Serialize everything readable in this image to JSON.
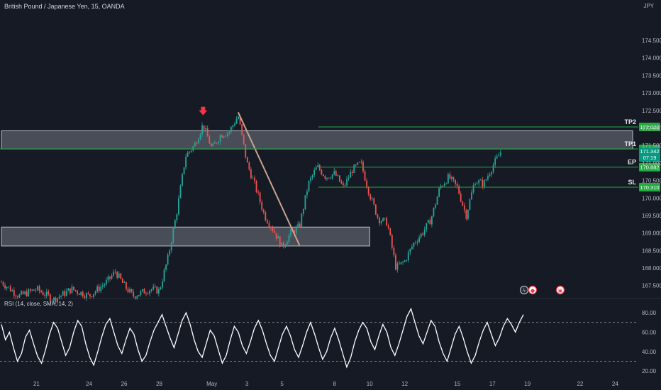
{
  "header": {
    "symbol_title": "British Pound / Japanese Yen, 15, OANDA",
    "currency": "JPY"
  },
  "rsi_panel": {
    "title": "RSI (14, close, SMA, 14, 2)"
  },
  "colors": {
    "background": "#161a25",
    "bull": "#26a69a",
    "bear": "#ef5350",
    "level_line": "#22ab3f",
    "zone_fill": "#cfd3de",
    "trendline": "#c9a391",
    "arrow": "#f23645",
    "rsi_line": "#ffffff",
    "rsi_band": "#787b86",
    "badge_green": "#22ab3f",
    "badge_current": "#089981"
  },
  "chart_data": [
    {
      "type": "candlestick",
      "title": "British Pound / Japanese Yen, 15, OANDA",
      "ylim": [
        167.15,
        175.25
      ],
      "y_ticks": [
        "174.500",
        "174.000",
        "173.500",
        "173.000",
        "172.500",
        "172.000",
        "171.500",
        "171.000",
        "170.500",
        "170.000",
        "169.500",
        "169.000",
        "168.500",
        "168.000",
        "167.500"
      ],
      "x_ticks": [
        "21",
        "24",
        "26",
        "28",
        "May",
        "3",
        "5",
        "8",
        "10",
        "12",
        "15",
        "17",
        "19",
        "22",
        "24"
      ],
      "x_tick_dates": [
        "2024-04-21",
        "2024-04-24",
        "2024-04-26",
        "2024-04-28",
        "2024-05-01",
        "2024-05-03",
        "2024-05-05",
        "2024-05-08",
        "2024-05-10",
        "2024-05-12",
        "2024-05-15",
        "2024-05-17",
        "2024-05-19",
        "2024-05-22",
        "2024-05-24"
      ],
      "price_path": [
        [
          "2024-04-19",
          167.6
        ],
        [
          "2024-04-20",
          167.2
        ],
        [
          "2024-04-21",
          167.4
        ],
        [
          "2024-04-22",
          167.1
        ],
        [
          "2024-04-23",
          167.4
        ],
        [
          "2024-04-24",
          167.2
        ],
        [
          "2024-04-25",
          167.6
        ],
        [
          "2024-04-25.5",
          167.9
        ],
        [
          "2024-04-26",
          167.5
        ],
        [
          "2024-04-26.5",
          167.2
        ],
        [
          "2024-04-27",
          167.3
        ],
        [
          "2024-04-27.5",
          167.4
        ],
        [
          "2024-04-28",
          167.35
        ],
        [
          "2024-04-28.5",
          168.3
        ],
        [
          "2024-04-29",
          169.6
        ],
        [
          "2024-04-29.5",
          171.2
        ],
        [
          "2024-04-30",
          171.5
        ],
        [
          "2024-04-30.5",
          172.1
        ],
        [
          "2024-05-01",
          171.4
        ],
        [
          "2024-05-01.5",
          171.8
        ],
        [
          "2024-05-02",
          171.9
        ],
        [
          "2024-05-02.5",
          172.35
        ],
        [
          "2024-05-03",
          171.0
        ],
        [
          "2024-05-03.5",
          170.3
        ],
        [
          "2024-05-04",
          169.5
        ],
        [
          "2024-05-04.5",
          169.1
        ],
        [
          "2024-05-05",
          168.6
        ],
        [
          "2024-05-05.5",
          169.0
        ],
        [
          "2024-05-06",
          169.2
        ],
        [
          "2024-05-06.5",
          170.4
        ],
        [
          "2024-05-07",
          170.9
        ],
        [
          "2024-05-07.5",
          170.6
        ],
        [
          "2024-05-08",
          170.7
        ],
        [
          "2024-05-08.5",
          170.3
        ],
        [
          "2024-05-09",
          170.8
        ],
        [
          "2024-05-09.5",
          171.0
        ],
        [
          "2024-05-10",
          170.1
        ],
        [
          "2024-05-10.5",
          169.4
        ],
        [
          "2024-05-11",
          169.3
        ],
        [
          "2024-05-11.5",
          168.0
        ],
        [
          "2024-05-12",
          168.2
        ],
        [
          "2024-05-12.5",
          168.7
        ],
        [
          "2024-05-13",
          169.0
        ],
        [
          "2024-05-13.5",
          169.4
        ],
        [
          "2024-05-14",
          170.3
        ],
        [
          "2024-05-14.5",
          170.6
        ],
        [
          "2024-05-15",
          170.3
        ],
        [
          "2024-05-15.5",
          169.5
        ],
        [
          "2024-05-16",
          170.5
        ],
        [
          "2024-05-16.5",
          170.4
        ],
        [
          "2024-05-17",
          170.9
        ],
        [
          "2024-05-17.5",
          171.34
        ]
      ],
      "current_price": "171.342",
      "current_countdown": "07:19",
      "levels": [
        {
          "label": "TP2",
          "value": 172.029,
          "value_text": "172.029"
        },
        {
          "label": "TP1",
          "value": 171.402,
          "value_text": "171.402"
        },
        {
          "label": "EP",
          "value": 170.882,
          "value_text": "170.882"
        },
        {
          "label": "SL",
          "value": 170.31,
          "value_text": "170.310"
        }
      ],
      "zones": [
        {
          "from": 171.4,
          "to": 171.92,
          "start": "2024-04-19",
          "end": "2024-05-25"
        },
        {
          "from": 168.63,
          "to": 169.17,
          "start": "2024-04-19",
          "end": "2024-05-10"
        }
      ],
      "trendline": {
        "start": [
          "2024-05-02.5",
          172.45
        ],
        "end": [
          "2024-05-06",
          168.65
        ]
      },
      "arrow_marker": {
        "at": [
          "2024-04-30.5",
          172.2
        ]
      }
    },
    {
      "type": "line",
      "title": "RSI (14, close, SMA, 14, 2)",
      "ylim": [
        15,
        88
      ],
      "y_ticks": [
        "80.00",
        "60.00",
        "40.00",
        "20.00"
      ],
      "bands": [
        70,
        30
      ],
      "series": [
        {
          "name": "RSI",
          "values": [
            68,
            52,
            60,
            44,
            30,
            38,
            55,
            62,
            48,
            35,
            28,
            42,
            58,
            70,
            64,
            50,
            36,
            44,
            60,
            72,
            66,
            48,
            34,
            26,
            40,
            55,
            68,
            74,
            60,
            46,
            38,
            52,
            64,
            58,
            42,
            30,
            36,
            50,
            62,
            70,
            78,
            66,
            54,
            44,
            58,
            72,
            80,
            68,
            52,
            40,
            34,
            48,
            62,
            56,
            42,
            28,
            36,
            52,
            66,
            60,
            46,
            38,
            50,
            64,
            72,
            62,
            48,
            36,
            30,
            44,
            58,
            66,
            56,
            42,
            34,
            46,
            60,
            70,
            58,
            44,
            32,
            40,
            54,
            64,
            52,
            38,
            24,
            34,
            50,
            62,
            70,
            64,
            50,
            42,
            56,
            68,
            60,
            44,
            36,
            48,
            62,
            76,
            84,
            70,
            56,
            48,
            60,
            72,
            66,
            50,
            38,
            30,
            44,
            58,
            66,
            54,
            40,
            28,
            36,
            50,
            62,
            70,
            58,
            46,
            54,
            66,
            74,
            68,
            60,
            70,
            78
          ]
        }
      ]
    }
  ]
}
